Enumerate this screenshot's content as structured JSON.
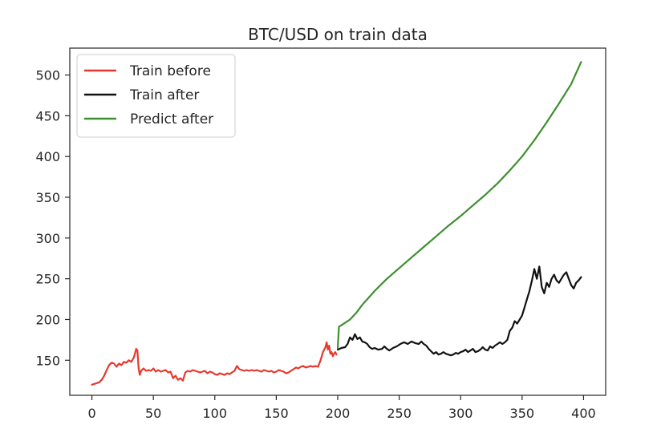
{
  "chart_data": {
    "type": "line",
    "title": "BTC/USD on train data",
    "xlabel": "",
    "ylabel": "",
    "xlim": [
      -18,
      418
    ],
    "ylim": [
      107,
      533
    ],
    "x_ticks": [
      0,
      50,
      100,
      150,
      200,
      250,
      300,
      350,
      400
    ],
    "y_ticks": [
      150,
      200,
      250,
      300,
      350,
      400,
      450,
      500
    ],
    "grid": false,
    "legend_position": "top-left",
    "series": [
      {
        "name": "Train before",
        "color": "#e8372c",
        "points": [
          [
            0,
            120
          ],
          [
            2,
            121
          ],
          [
            4,
            122
          ],
          [
            6,
            123
          ],
          [
            8,
            126
          ],
          [
            10,
            131
          ],
          [
            12,
            138
          ],
          [
            14,
            144
          ],
          [
            16,
            147
          ],
          [
            18,
            146
          ],
          [
            20,
            142
          ],
          [
            22,
            146
          ],
          [
            24,
            144
          ],
          [
            26,
            148
          ],
          [
            28,
            147
          ],
          [
            30,
            150
          ],
          [
            32,
            148
          ],
          [
            34,
            153
          ],
          [
            35,
            158
          ],
          [
            36,
            164
          ],
          [
            37,
            162
          ],
          [
            38,
            140
          ],
          [
            39,
            132
          ],
          [
            40,
            137
          ],
          [
            42,
            140
          ],
          [
            44,
            137
          ],
          [
            46,
            138
          ],
          [
            48,
            137
          ],
          [
            50,
            140
          ],
          [
            52,
            136
          ],
          [
            54,
            138
          ],
          [
            56,
            136
          ],
          [
            58,
            137
          ],
          [
            60,
            138
          ],
          [
            62,
            135
          ],
          [
            64,
            136
          ],
          [
            66,
            128
          ],
          [
            68,
            131
          ],
          [
            70,
            126
          ],
          [
            72,
            128
          ],
          [
            74,
            125
          ],
          [
            76,
            135
          ],
          [
            78,
            137
          ],
          [
            80,
            136
          ],
          [
            82,
            138
          ],
          [
            84,
            137
          ],
          [
            86,
            136
          ],
          [
            88,
            135
          ],
          [
            90,
            136
          ],
          [
            92,
            137
          ],
          [
            94,
            134
          ],
          [
            96,
            136
          ],
          [
            98,
            135
          ],
          [
            100,
            133
          ],
          [
            102,
            132
          ],
          [
            104,
            134
          ],
          [
            106,
            133
          ],
          [
            108,
            132
          ],
          [
            110,
            134
          ],
          [
            112,
            133
          ],
          [
            114,
            135
          ],
          [
            116,
            137
          ],
          [
            118,
            143
          ],
          [
            120,
            139
          ],
          [
            122,
            138
          ],
          [
            124,
            137
          ],
          [
            126,
            138
          ],
          [
            128,
            137
          ],
          [
            130,
            138
          ],
          [
            132,
            137
          ],
          [
            134,
            138
          ],
          [
            136,
            137
          ],
          [
            138,
            136
          ],
          [
            140,
            138
          ],
          [
            142,
            137
          ],
          [
            144,
            136
          ],
          [
            146,
            137
          ],
          [
            148,
            135
          ],
          [
            150,
            136
          ],
          [
            152,
            138
          ],
          [
            154,
            137
          ],
          [
            156,
            136
          ],
          [
            158,
            134
          ],
          [
            160,
            135
          ],
          [
            162,
            137
          ],
          [
            164,
            139
          ],
          [
            166,
            141
          ],
          [
            168,
            140
          ],
          [
            170,
            142
          ],
          [
            172,
            143
          ],
          [
            174,
            141
          ],
          [
            176,
            142
          ],
          [
            178,
            143
          ],
          [
            180,
            142
          ],
          [
            182,
            143
          ],
          [
            184,
            142
          ],
          [
            186,
            150
          ],
          [
            188,
            160
          ],
          [
            190,
            166
          ],
          [
            191,
            172
          ],
          [
            192,
            163
          ],
          [
            193,
            168
          ],
          [
            194,
            158
          ],
          [
            195,
            160
          ],
          [
            196,
            155
          ],
          [
            197,
            158
          ],
          [
            198,
            160
          ],
          [
            199,
            157
          ]
        ]
      },
      {
        "name": "Train after",
        "color": "#111111",
        "points": [
          [
            200,
            163
          ],
          [
            203,
            165
          ],
          [
            206,
            166
          ],
          [
            208,
            170
          ],
          [
            210,
            178
          ],
          [
            212,
            175
          ],
          [
            214,
            182
          ],
          [
            216,
            176
          ],
          [
            218,
            178
          ],
          [
            220,
            173
          ],
          [
            222,
            172
          ],
          [
            224,
            170
          ],
          [
            226,
            166
          ],
          [
            228,
            164
          ],
          [
            230,
            165
          ],
          [
            233,
            163
          ],
          [
            236,
            164
          ],
          [
            238,
            167
          ],
          [
            240,
            164
          ],
          [
            242,
            162
          ],
          [
            245,
            165
          ],
          [
            248,
            167
          ],
          [
            251,
            170
          ],
          [
            254,
            172
          ],
          [
            257,
            170
          ],
          [
            260,
            173
          ],
          [
            263,
            171
          ],
          [
            266,
            170
          ],
          [
            268,
            173
          ],
          [
            270,
            170
          ],
          [
            272,
            168
          ],
          [
            274,
            164
          ],
          [
            276,
            161
          ],
          [
            278,
            158
          ],
          [
            280,
            160
          ],
          [
            282,
            157
          ],
          [
            284,
            158
          ],
          [
            286,
            160
          ],
          [
            288,
            158
          ],
          [
            290,
            157
          ],
          [
            292,
            156
          ],
          [
            294,
            157
          ],
          [
            296,
            159
          ],
          [
            298,
            158
          ],
          [
            300,
            160
          ],
          [
            302,
            161
          ],
          [
            304,
            163
          ],
          [
            306,
            160
          ],
          [
            308,
            162
          ],
          [
            310,
            164
          ],
          [
            312,
            160
          ],
          [
            314,
            161
          ],
          [
            316,
            163
          ],
          [
            318,
            166
          ],
          [
            320,
            163
          ],
          [
            322,
            162
          ],
          [
            324,
            167
          ],
          [
            326,
            165
          ],
          [
            328,
            168
          ],
          [
            330,
            170
          ],
          [
            332,
            172
          ],
          [
            334,
            170
          ],
          [
            336,
            172
          ],
          [
            338,
            175
          ],
          [
            340,
            186
          ],
          [
            342,
            190
          ],
          [
            344,
            198
          ],
          [
            346,
            195
          ],
          [
            348,
            200
          ],
          [
            350,
            205
          ],
          [
            352,
            215
          ],
          [
            354,
            225
          ],
          [
            356,
            235
          ],
          [
            358,
            248
          ],
          [
            360,
            262
          ],
          [
            362,
            250
          ],
          [
            364,
            265
          ],
          [
            366,
            240
          ],
          [
            368,
            232
          ],
          [
            370,
            245
          ],
          [
            372,
            240
          ],
          [
            374,
            250
          ],
          [
            376,
            255
          ],
          [
            378,
            248
          ],
          [
            380,
            245
          ],
          [
            382,
            250
          ],
          [
            384,
            255
          ],
          [
            386,
            258
          ],
          [
            388,
            250
          ],
          [
            390,
            242
          ],
          [
            392,
            238
          ],
          [
            394,
            245
          ],
          [
            396,
            248
          ],
          [
            398,
            252
          ]
        ]
      },
      {
        "name": "Predict after",
        "color": "#3d8f2f",
        "points": [
          [
            200,
            165
          ],
          [
            201,
            191
          ],
          [
            205,
            195
          ],
          [
            210,
            200
          ],
          [
            215,
            208
          ],
          [
            220,
            218
          ],
          [
            230,
            235
          ],
          [
            240,
            250
          ],
          [
            250,
            263
          ],
          [
            260,
            276
          ],
          [
            270,
            289
          ],
          [
            280,
            302
          ],
          [
            290,
            315
          ],
          [
            300,
            327
          ],
          [
            310,
            340
          ],
          [
            320,
            353
          ],
          [
            330,
            367
          ],
          [
            340,
            383
          ],
          [
            350,
            400
          ],
          [
            360,
            420
          ],
          [
            370,
            442
          ],
          [
            380,
            465
          ],
          [
            390,
            489
          ],
          [
            398,
            516
          ]
        ]
      }
    ]
  }
}
